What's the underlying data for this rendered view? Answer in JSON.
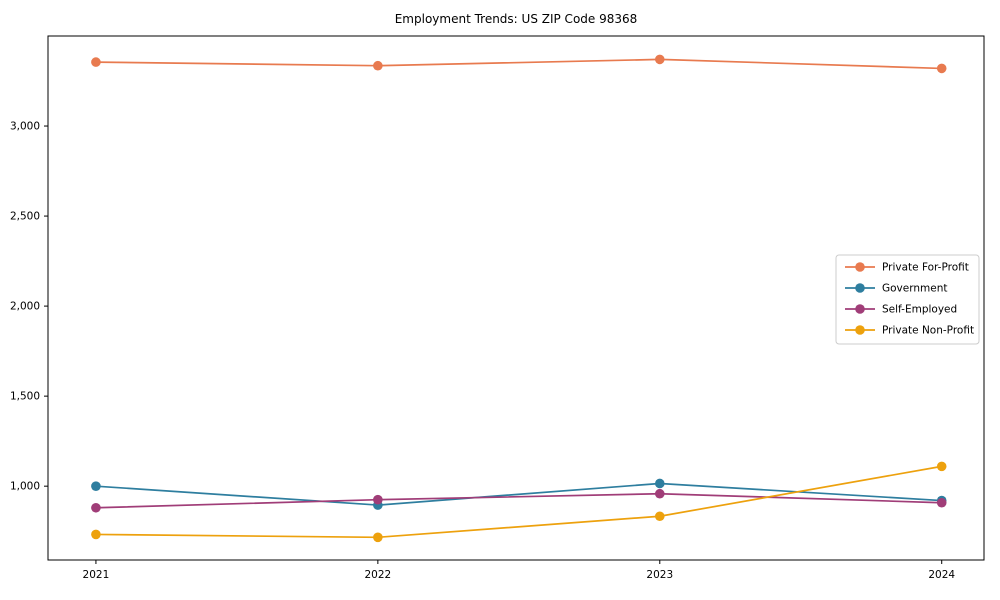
{
  "chart_data": {
    "type": "line",
    "title": "Employment Trends: US ZIP Code 98368",
    "xlabel": "",
    "ylabel": "",
    "x": [
      2021,
      2022,
      2023,
      2024
    ],
    "x_tick_labels": [
      "2021",
      "2022",
      "2023",
      "2024"
    ],
    "series": [
      {
        "name": "Private For-Profit",
        "color": "#e87a4f",
        "values": [
          3355,
          3335,
          3370,
          3320
        ]
      },
      {
        "name": "Government",
        "color": "#2e7e9f",
        "values": [
          1000,
          895,
          1015,
          920
        ]
      },
      {
        "name": "Self-Employed",
        "color": "#a03d78",
        "values": [
          880,
          925,
          958,
          908
        ]
      },
      {
        "name": "Private Non-Profit",
        "color": "#eda10d",
        "values": [
          732,
          716,
          833,
          1110
        ]
      }
    ],
    "yticks": [
      1000,
      1500,
      2000,
      2500,
      3000
    ],
    "ytick_labels": [
      "1,000",
      "1,500",
      "2,000",
      "2,500",
      "3,000"
    ],
    "ylim": [
      590,
      3500
    ],
    "xlim": [
      2020.83,
      2024.15
    ],
    "grid": false,
    "legend": {
      "position": "center-right",
      "border_color": "#cccccc",
      "background": "#ffffff"
    },
    "axis_color": "#000000",
    "background_color": "#ffffff"
  }
}
